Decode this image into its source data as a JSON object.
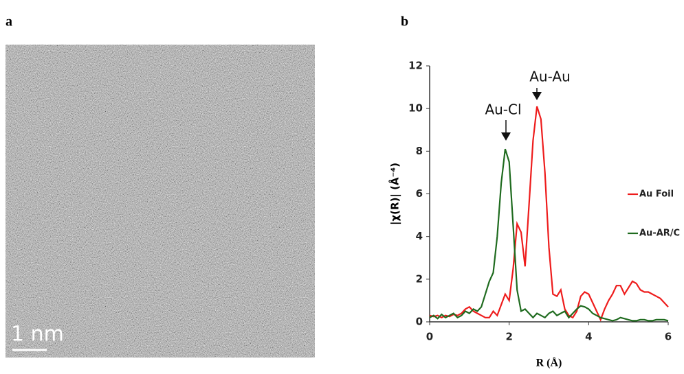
{
  "panels": {
    "a": "a",
    "b": "b"
  },
  "image": {
    "scale_bar": "1 nm"
  },
  "chart_data": {
    "type": "line",
    "xlabel": "R (Å)",
    "ylabel": "|χ(R)| (Å⁻⁴)",
    "annotations": [
      "Au-Au",
      "Au-Cl"
    ],
    "x": [
      0,
      0.1,
      0.2,
      0.3,
      0.4,
      0.5,
      0.6,
      0.7,
      0.8,
      0.9,
      1.0,
      1.1,
      1.2,
      1.3,
      1.4,
      1.5,
      1.6,
      1.7,
      1.8,
      1.9,
      2.0,
      2.1,
      2.2,
      2.3,
      2.4,
      2.5,
      2.6,
      2.7,
      2.8,
      2.9,
      3.0,
      3.1,
      3.2,
      3.3,
      3.4,
      3.5,
      3.6,
      3.7,
      3.8,
      3.9,
      4.0,
      4.1,
      4.2,
      4.3,
      4.4,
      4.5,
      4.6,
      4.7,
      4.8,
      4.9,
      5.0,
      5.1,
      5.2,
      5.3,
      5.4,
      5.5,
      5.6,
      5.7,
      5.8,
      5.9,
      6.0
    ],
    "series": [
      {
        "name": "Au Foil",
        "color": "#ee1c1c",
        "values": [
          0.3,
          0.25,
          0.3,
          0.2,
          0.3,
          0.25,
          0.35,
          0.3,
          0.4,
          0.6,
          0.7,
          0.5,
          0.4,
          0.3,
          0.2,
          0.2,
          0.5,
          0.3,
          0.8,
          1.3,
          1.0,
          2.5,
          4.6,
          4.2,
          2.6,
          5.5,
          8.5,
          10.1,
          9.5,
          7.0,
          3.5,
          1.3,
          1.2,
          1.5,
          0.6,
          0.3,
          0.2,
          0.5,
          1.2,
          1.4,
          1.3,
          0.9,
          0.5,
          0.1,
          0.6,
          1.0,
          1.3,
          1.7,
          1.7,
          1.3,
          1.6,
          1.9,
          1.8,
          1.5,
          1.4,
          1.4,
          1.3,
          1.2,
          1.1,
          0.9,
          0.7
        ]
      },
      {
        "name": "Au-AR/C",
        "color": "#1f6b1f",
        "values": [
          0.2,
          0.3,
          0.15,
          0.35,
          0.2,
          0.3,
          0.4,
          0.2,
          0.3,
          0.5,
          0.4,
          0.6,
          0.5,
          0.7,
          1.3,
          1.9,
          2.3,
          4.0,
          6.5,
          8.1,
          7.5,
          4.5,
          1.5,
          0.5,
          0.6,
          0.4,
          0.2,
          0.4,
          0.3,
          0.2,
          0.4,
          0.5,
          0.3,
          0.4,
          0.5,
          0.2,
          0.4,
          0.6,
          0.75,
          0.7,
          0.6,
          0.4,
          0.3,
          0.2,
          0.15,
          0.1,
          0.05,
          0.1,
          0.2,
          0.15,
          0.1,
          0.05,
          0.05,
          0.1,
          0.1,
          0.05,
          0.05,
          0.1,
          0.1,
          0.1,
          0.05
        ]
      }
    ],
    "xlim": [
      0,
      6
    ],
    "xticks": [
      0,
      2,
      4,
      6
    ],
    "ylim": [
      0,
      12
    ],
    "yticks": [
      0,
      2,
      4,
      6,
      8,
      10,
      12
    ],
    "legend": "right"
  }
}
